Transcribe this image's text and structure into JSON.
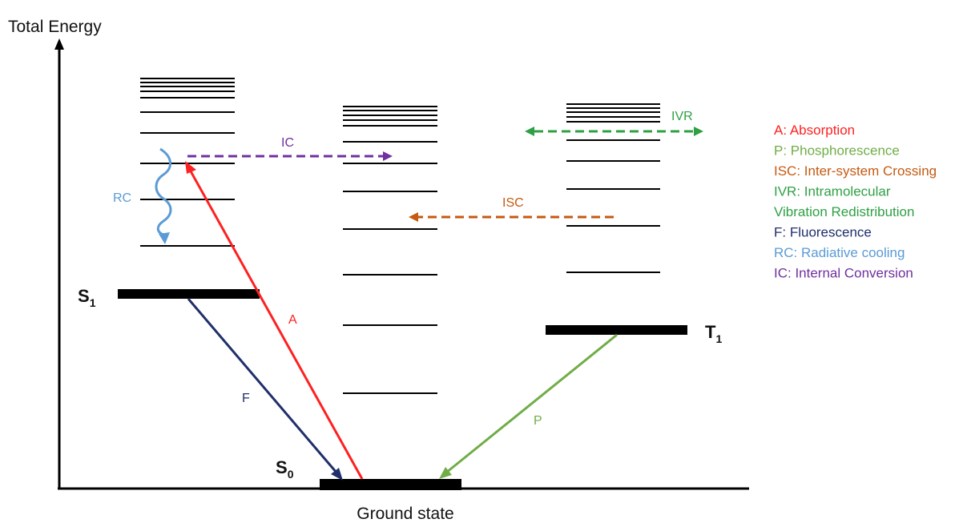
{
  "axis": {
    "y_label": "Total Energy",
    "x_label": "Ground state"
  },
  "states": {
    "s0": {
      "letter": "S",
      "sub": "0"
    },
    "s1": {
      "letter": "S",
      "sub": "1"
    },
    "t1": {
      "letter": "T",
      "sub": "1"
    }
  },
  "processes": {
    "ic": {
      "label": "IC",
      "color": "#7030a0"
    },
    "isc": {
      "label": "ISC",
      "color": "#c55a11"
    },
    "ivr": {
      "label": "IVR",
      "color": "#2ea043"
    },
    "rc": {
      "label": "RC",
      "color": "#5b9bd5"
    },
    "a": {
      "label": "A",
      "color": "#ff2020"
    },
    "f": {
      "label": "F",
      "color": "#1f2f6b"
    },
    "p": {
      "label": "P",
      "color": "#70ad47"
    }
  },
  "legend": [
    {
      "text": "A: Absorption",
      "color": "#ff2020"
    },
    {
      "text": "P: Phosphorescence",
      "color": "#70ad47"
    },
    {
      "text": "ISC: Inter-system Crossing",
      "color": "#c55a11"
    },
    {
      "text": "IVR: Intramolecular",
      "color": "#2ea043"
    },
    {
      "text": "Vibration Redistribution",
      "color": "#2ea043"
    },
    {
      "text": "F: Fluorescence",
      "color": "#1f2f6b"
    },
    {
      "text": "RC: Radiative cooling",
      "color": "#5b9bd5"
    },
    {
      "text": "IC: Internal Conversion",
      "color": "#7030a0"
    }
  ]
}
